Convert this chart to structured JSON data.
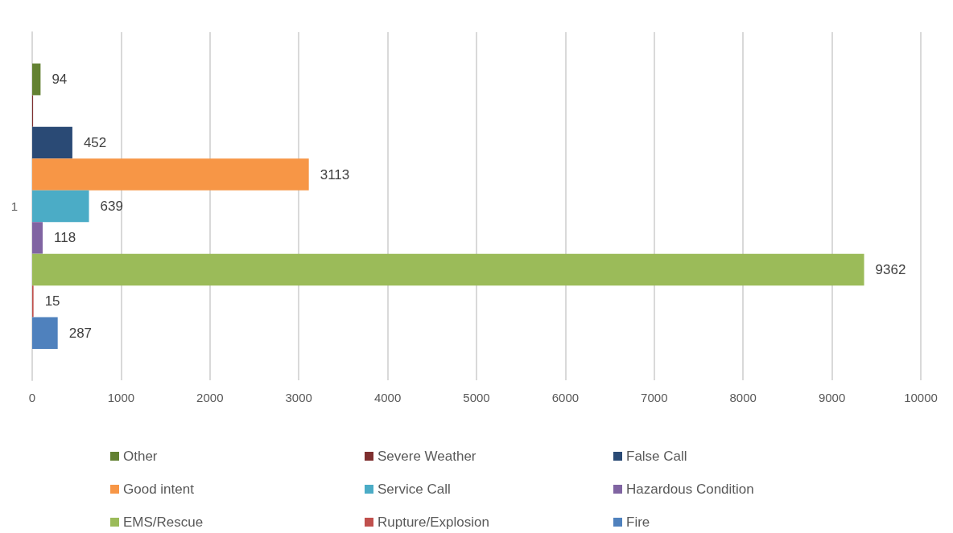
{
  "chart_data": {
    "type": "bar",
    "orientation": "horizontal",
    "categories": [
      "1"
    ],
    "series": [
      {
        "name": "Other",
        "color": "#638132",
        "values": [
          94
        ],
        "value_labels": [
          "94"
        ]
      },
      {
        "name": "Severe Weather",
        "color": "#7e2f2f",
        "values": [
          10
        ],
        "value_labels": [
          null
        ]
      },
      {
        "name": "False Call",
        "color": "#2a4a75",
        "values": [
          452
        ],
        "value_labels": [
          "452"
        ]
      },
      {
        "name": "Good intent",
        "color": "#f79646",
        "values": [
          3113
        ],
        "value_labels": [
          "3113"
        ]
      },
      {
        "name": "Service Call",
        "color": "#4bacc6",
        "values": [
          639
        ],
        "value_labels": [
          "639"
        ]
      },
      {
        "name": "Hazardous Condition",
        "color": "#8064a2",
        "values": [
          118
        ],
        "value_labels": [
          "118"
        ]
      },
      {
        "name": "EMS/Rescue",
        "color": "#9bbb59",
        "values": [
          9362
        ],
        "value_labels": [
          "9362"
        ]
      },
      {
        "name": "Rupture/Explosion",
        "color": "#c0504d",
        "values": [
          15
        ],
        "value_labels": [
          "15"
        ]
      },
      {
        "name": "Fire",
        "color": "#4f81bd",
        "values": [
          287
        ],
        "value_labels": [
          "287"
        ]
      }
    ],
    "xlim": [
      0,
      10000
    ],
    "xticks": [
      0,
      1000,
      2000,
      3000,
      4000,
      5000,
      6000,
      7000,
      8000,
      9000,
      10000
    ],
    "grid": "x",
    "legend": "bottom"
  }
}
